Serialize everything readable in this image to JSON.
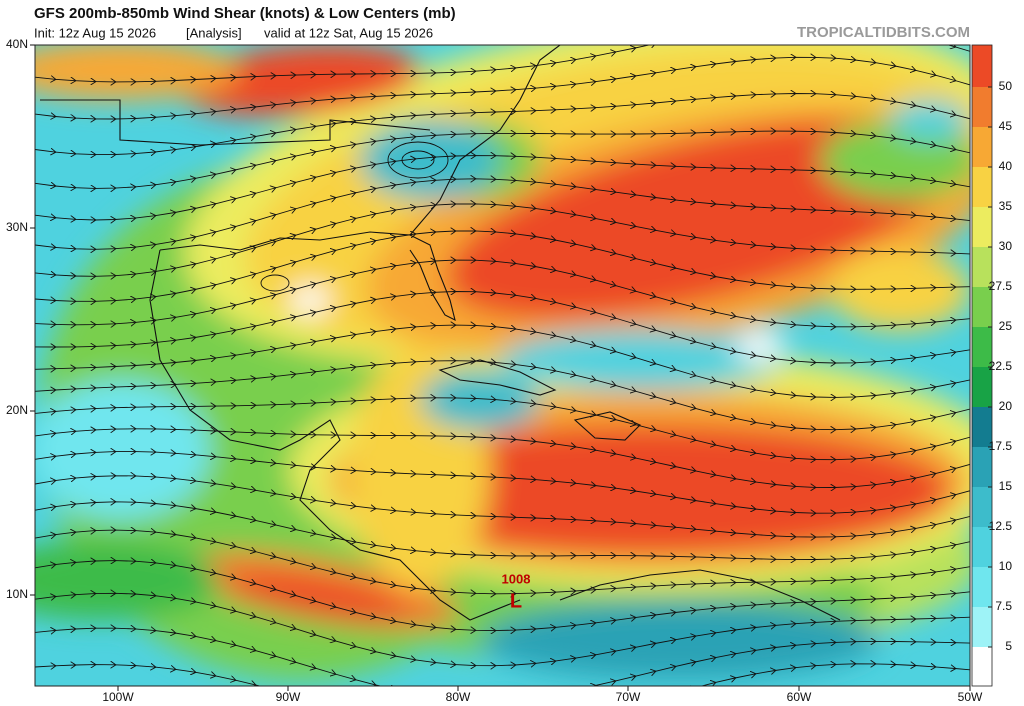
{
  "header": {
    "title": "GFS 200mb-850mb Wind Shear (knots) & Low Centers (mb)",
    "init": "Init: 12z Aug 15 2026",
    "run": "[Analysis]",
    "valid": "valid at 12z Sat, Aug 15 2026",
    "credit": "TROPICALTIDBITS.COM"
  },
  "map": {
    "lat_labels": [
      "40N",
      "30N",
      "20N",
      "10N"
    ],
    "lon_labels": [
      "100W",
      "90W",
      "80W",
      "70W",
      "60W",
      "50W"
    ],
    "low_center": {
      "pressure": "1008",
      "symbol": "L"
    }
  },
  "colorbar": {
    "levels": [
      5,
      7.5,
      10,
      12.5,
      15,
      17.5,
      20,
      22.5,
      25,
      27.5,
      30,
      35,
      40,
      45,
      50
    ],
    "colors": [
      "#ffffff",
      "#9ef3f7",
      "#6fe6ee",
      "#4fd2df",
      "#3dbccb",
      "#2aa2b5",
      "#137c90",
      "#18a346",
      "#3dbb48",
      "#79cf4d",
      "#b8e15c",
      "#ecec5f",
      "#f8d243",
      "#f7a834",
      "#f17c2e",
      "#ec4a26"
    ]
  }
}
